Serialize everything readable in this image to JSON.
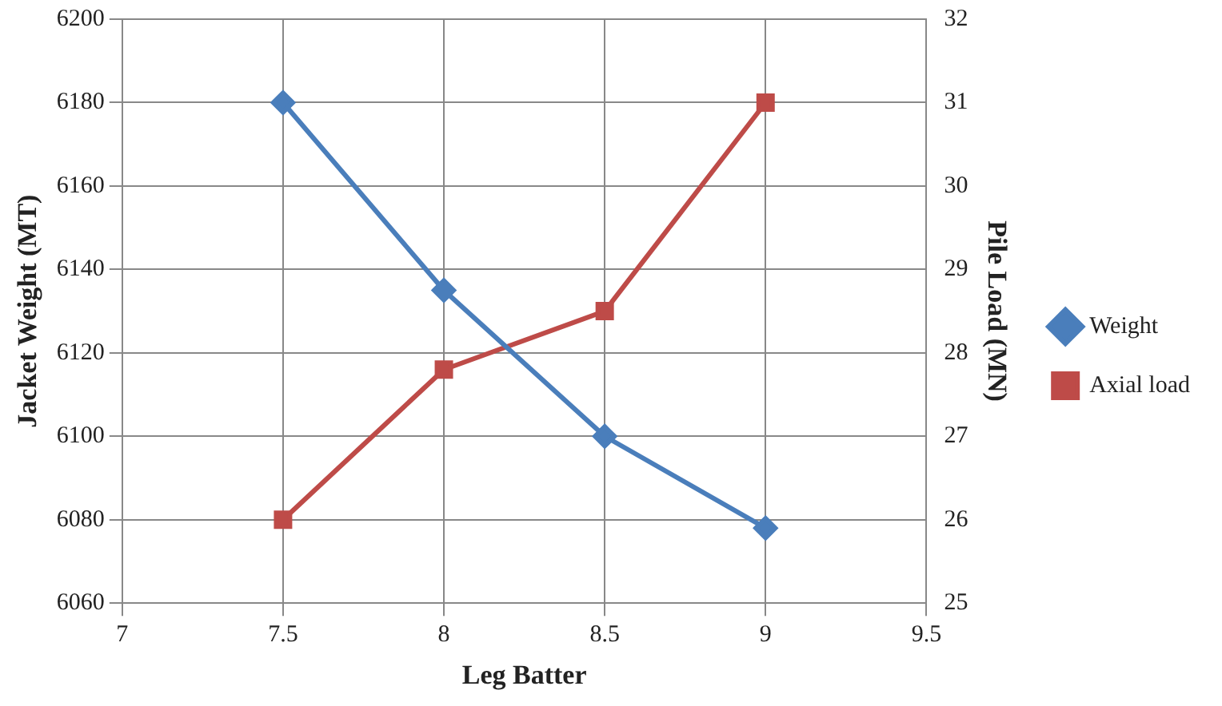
{
  "chart_data": {
    "type": "line",
    "xlabel": "Leg Batter",
    "ylabel": "Jacket Weight (MT)",
    "y2label": "Pile Load (MN)",
    "x": [
      7.5,
      8,
      8.5,
      9
    ],
    "series": [
      {
        "name": "Weight",
        "color": "#4a7ebb",
        "values": [
          6180,
          6135,
          6100,
          6078
        ],
        "marker": "diamond"
      },
      {
        "name": "Axial load",
        "color": "#be4b48",
        "values": [
          26,
          27.8,
          28.5,
          31
        ],
        "marker": "square",
        "axis": "y2"
      }
    ],
    "xlim": [
      7,
      9.5
    ],
    "xticks": [
      7,
      7.5,
      8,
      8.5,
      9,
      9.5
    ],
    "ylim": [
      6060,
      6200
    ],
    "yticks": [
      6060,
      6080,
      6100,
      6120,
      6140,
      6160,
      6180,
      6200
    ],
    "y2lim": [
      25,
      32
    ],
    "y2ticks": [
      25,
      26,
      27,
      28,
      29,
      30,
      31,
      32
    ],
    "grid": true,
    "legend": "right",
    "line_style": "solid"
  }
}
